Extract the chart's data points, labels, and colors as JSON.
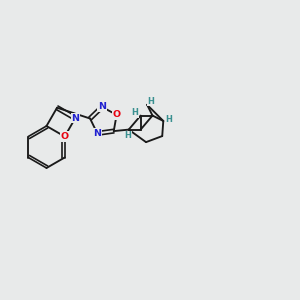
{
  "bg_color": "#e8eaea",
  "bond_color": "#1a1a1a",
  "atom_colors": {
    "O": "#e8000e",
    "N": "#2020d0",
    "C": "#1a1a1a",
    "H": "#3a9090"
  },
  "figsize": [
    3.0,
    3.0
  ],
  "dpi": 100,
  "xlim": [
    0,
    10
  ],
  "ylim": [
    0,
    10
  ]
}
